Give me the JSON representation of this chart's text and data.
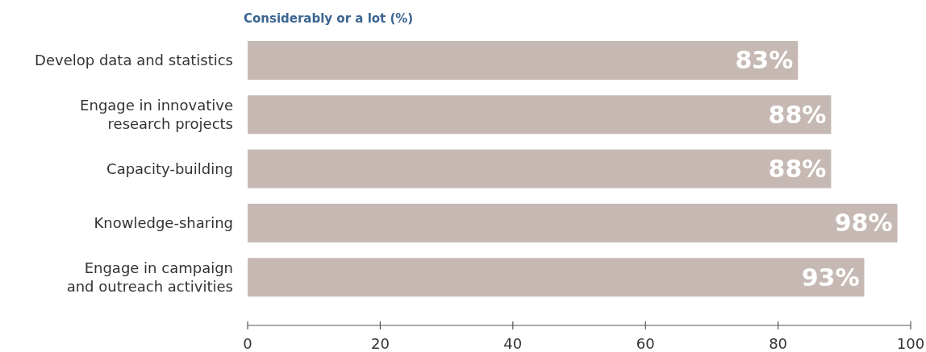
{
  "chart_data": {
    "type": "bar",
    "orientation": "horizontal",
    "title": "Considerably or a lot (%)",
    "categories": [
      "Develop data and statistics",
      "Engage in innovative research projects",
      "Capacity-building",
      "Knowledge-sharing",
      "Engage in campaign and outreach activities"
    ],
    "values": [
      83,
      88,
      88,
      98,
      93
    ],
    "color": "#c6b9b4",
    "value_labels": [
      "83%",
      "88%",
      "88%",
      "98%",
      "93%"
    ],
    "xlim": [
      0,
      100
    ],
    "xticks": [
      0,
      20,
      40,
      60,
      80,
      100
    ]
  }
}
